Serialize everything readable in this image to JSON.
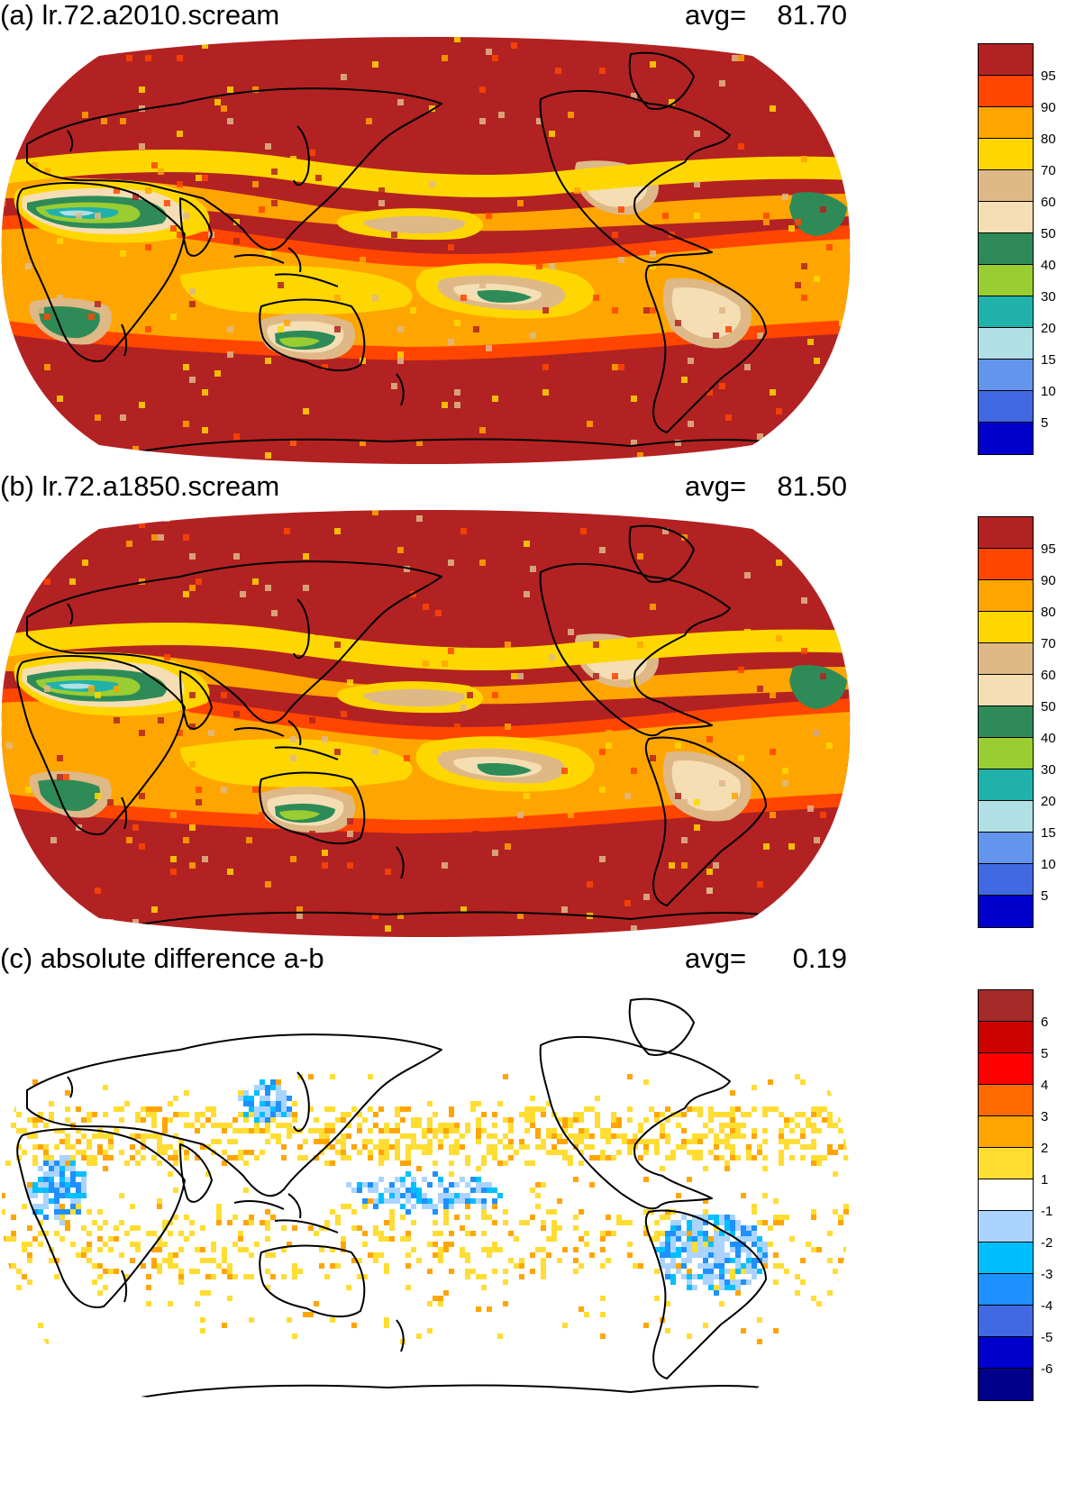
{
  "panels": [
    {
      "title": "(a) lr.72.a2010.scream",
      "avg_label": "avg=",
      "avg_value": "81.70",
      "colorbar": {
        "colors": [
          "#b22222",
          "#ff4500",
          "#ffa500",
          "#ffd700",
          "#deb887",
          "#f5deb3",
          "#2e8b57",
          "#9acd32",
          "#20b2aa",
          "#b0e0e6",
          "#6495ed",
          "#4169e1",
          "#0000cd"
        ],
        "labels": [
          "95",
          "90",
          "80",
          "70",
          "60",
          "50",
          "40",
          "30",
          "20",
          "15",
          "10",
          "5"
        ]
      },
      "map_style": "filled"
    },
    {
      "title": "(b) lr.72.a1850.scream",
      "avg_label": "avg=",
      "avg_value": "81.50",
      "colorbar": {
        "colors": [
          "#b22222",
          "#ff4500",
          "#ffa500",
          "#ffd700",
          "#deb887",
          "#f5deb3",
          "#2e8b57",
          "#9acd32",
          "#20b2aa",
          "#b0e0e6",
          "#6495ed",
          "#4169e1",
          "#0000cd"
        ],
        "labels": [
          "95",
          "90",
          "80",
          "70",
          "60",
          "50",
          "40",
          "30",
          "20",
          "15",
          "10",
          "5"
        ]
      },
      "map_style": "filled"
    },
    {
      "title": "(c) absolute difference a-b",
      "avg_label": "avg=",
      "avg_value": "0.19",
      "colorbar": {
        "colors": [
          "#a52a2a",
          "#cd0000",
          "#ff0000",
          "#ff6a00",
          "#ffa500",
          "#ffdd33",
          "#ffffff",
          "#aad4ff",
          "#00bfff",
          "#1e90ff",
          "#4169e1",
          "#0000cd",
          "#00008b"
        ],
        "labels": [
          "6",
          "5",
          "4",
          "3",
          "2",
          "1",
          "-1",
          "-2",
          "-3",
          "-4",
          "-5",
          "-6"
        ]
      },
      "map_style": "difference"
    }
  ]
}
